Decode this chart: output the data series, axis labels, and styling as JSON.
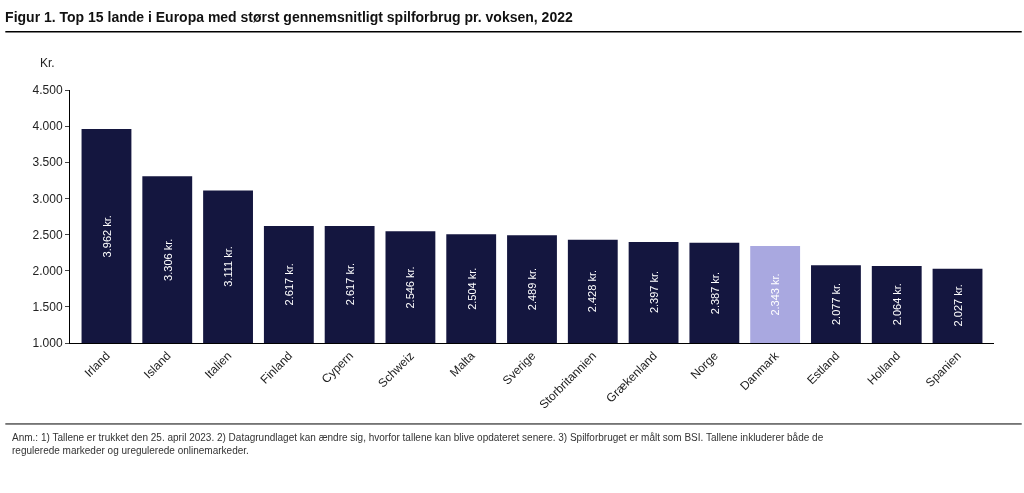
{
  "chart_data": {
    "type": "bar",
    "title": "Figur 1. Top 15 lande i Europa med størst gennemsnitligt spilforbrug pr. voksen, 2022",
    "ylabel": "Kr.",
    "categories": [
      "Irland",
      "Island",
      "Italien",
      "Finland",
      "Cypern",
      "Schweiz",
      "Malta",
      "Sverige",
      "Storbritannien",
      "Grækenland",
      "Norge",
      "Danmark",
      "Estland",
      "Holland",
      "Spanien"
    ],
    "values": [
      3962,
      3306,
      3111,
      2617,
      2617,
      2546,
      2504,
      2489,
      2428,
      2397,
      2387,
      2343,
      2077,
      2064,
      2027
    ],
    "value_labels": [
      "3.962 kr.",
      "3.306 kr.",
      "3.111 kr.",
      "2.617 kr.",
      "2.617 kr.",
      "2.546 kr.",
      "2.504 kr.",
      "2.489 kr.",
      "2.428 kr.",
      "2.397 kr.",
      "2.387 kr.",
      "2.343 kr.",
      "2.077 kr.",
      "2.064 kr.",
      "2.027 kr."
    ],
    "colors": [
      "#14163f",
      "#14163f",
      "#14163f",
      "#14163f",
      "#14163f",
      "#14163f",
      "#14163f",
      "#14163f",
      "#14163f",
      "#14163f",
      "#14163f",
      "#a9a8e0",
      "#14163f",
      "#14163f",
      "#14163f"
    ],
    "ylim": [
      1000,
      4500
    ],
    "yticks": [
      {
        "value": 1000,
        "label": "1.000"
      },
      {
        "value": 1500,
        "label": "1.500"
      },
      {
        "value": 2000,
        "label": "2.000"
      },
      {
        "value": 2500,
        "label": "2.500"
      },
      {
        "value": 3000,
        "label": "3.000"
      },
      {
        "value": 3500,
        "label": "3.500"
      },
      {
        "value": 4000,
        "label": "4.000"
      },
      {
        "value": 4500,
        "label": "4.500"
      }
    ],
    "annotations": [
      "Anm.: 1) Tallene er trukket den 25. april 2023. 2) Datagrundlaget kan ændre sig, hvorfor tallene kan blive opdateret senere. 3) Spilforbruget er målt som BSI. Tallene inkluderer både de regulerede markeder og uregulerede onlinemarkeder."
    ]
  }
}
